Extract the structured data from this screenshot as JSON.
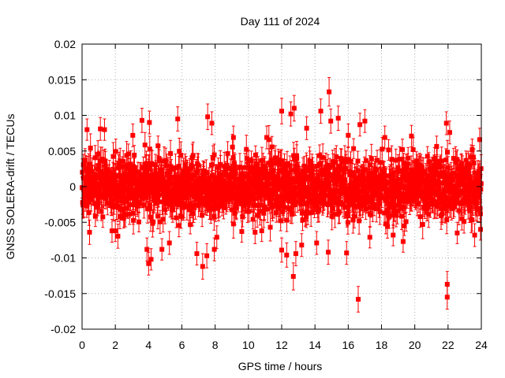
{
  "chart_data": {
    "type": "scatter",
    "title": "Day 111 of 2024",
    "xlabel": "GPS time / hours",
    "ylabel": "GNSS SOLERA-drift / TECUs",
    "xlim": [
      0,
      24
    ],
    "ylim": [
      -0.02,
      0.02
    ],
    "xticks": [
      "0",
      "2",
      "4",
      "6",
      "8",
      "10",
      "12",
      "14",
      "16",
      "18",
      "20",
      "22",
      "24"
    ],
    "yticks": [
      "-0.02",
      "-0.015",
      "-0.01",
      "-0.005",
      "0",
      "0.005",
      "0.01",
      "0.015",
      "0.02"
    ],
    "grid": true,
    "marker": "square",
    "series_color": "#ff0000",
    "noise": {
      "point_count": 1700,
      "center": 0.0,
      "spread": 0.0029,
      "errorbar_mean": 0.0016
    },
    "outliers": [
      {
        "x": 0.3,
        "y": 0.008,
        "err": 0.0015
      },
      {
        "x": 0.45,
        "y": -0.0064,
        "err": 0.0017
      },
      {
        "x": 1.1,
        "y": 0.0081,
        "err": 0.0016
      },
      {
        "x": 1.35,
        "y": 0.008,
        "err": 0.0015
      },
      {
        "x": 1.8,
        "y": -0.0062,
        "err": 0.0016
      },
      {
        "x": 2.0,
        "y": -0.0062,
        "err": 0.0015
      },
      {
        "x": 3.05,
        "y": 0.0072,
        "err": 0.0016
      },
      {
        "x": 3.6,
        "y": 0.0093,
        "err": 0.0017
      },
      {
        "x": 3.9,
        "y": -0.0088,
        "err": 0.0016
      },
      {
        "x": 4.0,
        "y": -0.0108,
        "err": 0.0016
      },
      {
        "x": 4.15,
        "y": -0.0102,
        "err": 0.0015
      },
      {
        "x": 4.05,
        "y": 0.009,
        "err": 0.0016
      },
      {
        "x": 4.8,
        "y": -0.0088,
        "err": 0.0015
      },
      {
        "x": 5.25,
        "y": -0.0079,
        "err": 0.0016
      },
      {
        "x": 5.75,
        "y": 0.0095,
        "err": 0.0017
      },
      {
        "x": 6.9,
        "y": -0.0094,
        "err": 0.0016
      },
      {
        "x": 7.25,
        "y": -0.0112,
        "err": 0.0018
      },
      {
        "x": 7.5,
        "y": -0.0097,
        "err": 0.0017
      },
      {
        "x": 7.55,
        "y": 0.0098,
        "err": 0.0018
      },
      {
        "x": 7.8,
        "y": 0.0089,
        "err": 0.0016
      },
      {
        "x": 7.95,
        "y": -0.0088,
        "err": 0.0016
      },
      {
        "x": 8.1,
        "y": -0.0071,
        "err": 0.0016
      },
      {
        "x": 9.1,
        "y": 0.0069,
        "err": 0.0016
      },
      {
        "x": 9.6,
        "y": -0.0063,
        "err": 0.0015
      },
      {
        "x": 10.4,
        "y": -0.0064,
        "err": 0.0016
      },
      {
        "x": 10.8,
        "y": -0.0062,
        "err": 0.0015
      },
      {
        "x": 11.1,
        "y": 0.0069,
        "err": 0.0016
      },
      {
        "x": 12.0,
        "y": 0.0106,
        "err": 0.0018
      },
      {
        "x": 12.0,
        "y": -0.0089,
        "err": 0.0017
      },
      {
        "x": 12.3,
        "y": -0.0096,
        "err": 0.0017
      },
      {
        "x": 12.55,
        "y": 0.0102,
        "err": 0.0017
      },
      {
        "x": 12.7,
        "y": -0.0126,
        "err": 0.0019
      },
      {
        "x": 12.75,
        "y": 0.011,
        "err": 0.0018
      },
      {
        "x": 12.85,
        "y": -0.0094,
        "err": 0.0017
      },
      {
        "x": 13.2,
        "y": -0.0082,
        "err": 0.0016
      },
      {
        "x": 13.5,
        "y": 0.0082,
        "err": 0.0016
      },
      {
        "x": 14.1,
        "y": -0.0079,
        "err": 0.0016
      },
      {
        "x": 14.35,
        "y": 0.0106,
        "err": 0.0017
      },
      {
        "x": 14.8,
        "y": -0.0092,
        "err": 0.0017
      },
      {
        "x": 14.85,
        "y": 0.0133,
        "err": 0.002
      },
      {
        "x": 14.95,
        "y": 0.0092,
        "err": 0.0017
      },
      {
        "x": 15.4,
        "y": 0.0096,
        "err": 0.0017
      },
      {
        "x": 15.9,
        "y": -0.0093,
        "err": 0.0016
      },
      {
        "x": 16.0,
        "y": 0.0072,
        "err": 0.0016
      },
      {
        "x": 16.6,
        "y": -0.0158,
        "err": 0.0018
      },
      {
        "x": 16.7,
        "y": 0.0087,
        "err": 0.0016
      },
      {
        "x": 17.0,
        "y": 0.0092,
        "err": 0.0016
      },
      {
        "x": 17.3,
        "y": -0.0071,
        "err": 0.0015
      },
      {
        "x": 18.2,
        "y": 0.0069,
        "err": 0.0016
      },
      {
        "x": 18.7,
        "y": -0.0068,
        "err": 0.0015
      },
      {
        "x": 19.3,
        "y": -0.0077,
        "err": 0.0015
      },
      {
        "x": 19.8,
        "y": 0.0071,
        "err": 0.0015
      },
      {
        "x": 21.9,
        "y": 0.0089,
        "err": 0.0016
      },
      {
        "x": 21.95,
        "y": -0.0137,
        "err": 0.0018
      },
      {
        "x": 21.95,
        "y": -0.0155,
        "err": 0.0017
      },
      {
        "x": 22.1,
        "y": 0.0076,
        "err": 0.0016
      },
      {
        "x": 22.55,
        "y": -0.0065,
        "err": 0.0015
      },
      {
        "x": 23.6,
        "y": -0.0068,
        "err": 0.0016
      },
      {
        "x": 23.9,
        "y": 0.0066,
        "err": 0.0016
      },
      {
        "x": 23.95,
        "y": -0.006,
        "err": 0.0015
      }
    ]
  }
}
